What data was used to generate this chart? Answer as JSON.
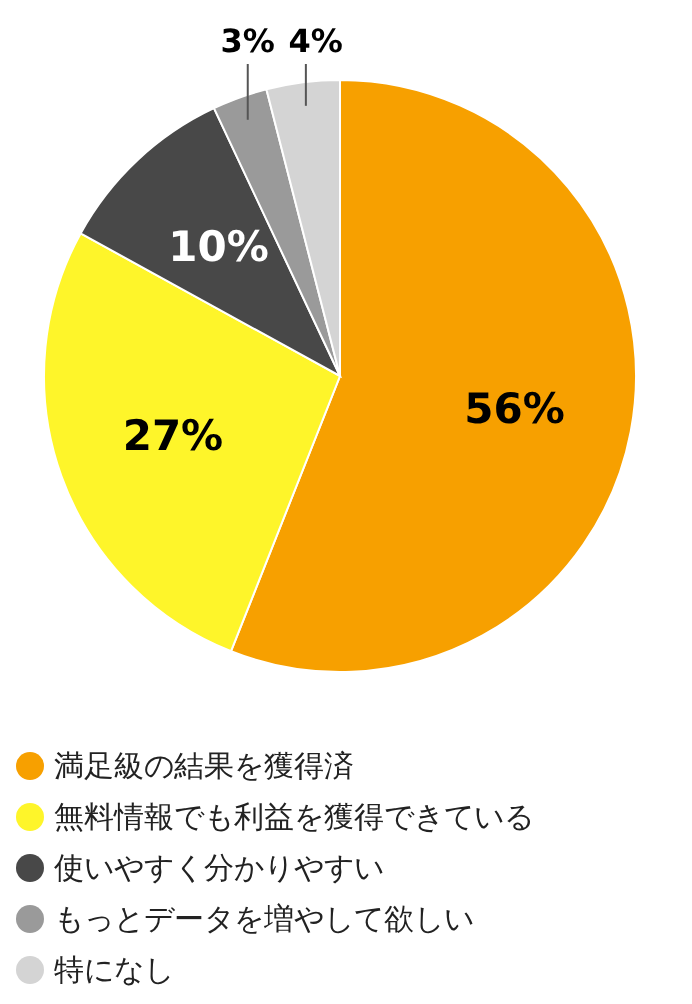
{
  "chart_data": {
    "type": "pie",
    "categories": [
      "満足級の結果を獲得済",
      "無料情報でも利益を獲得できている",
      "使いやすく分かりやすい",
      "もっとデータを増やして欲しい",
      "特になし"
    ],
    "values": [
      56,
      27,
      10,
      3,
      4
    ],
    "colors": [
      "#f7a000",
      "#fef52a",
      "#484848",
      "#9a9a9a",
      "#d4d4d4"
    ],
    "value_labels": [
      "56%",
      "27%",
      "10%",
      "3%",
      "4%"
    ],
    "legend": "bottom"
  }
}
